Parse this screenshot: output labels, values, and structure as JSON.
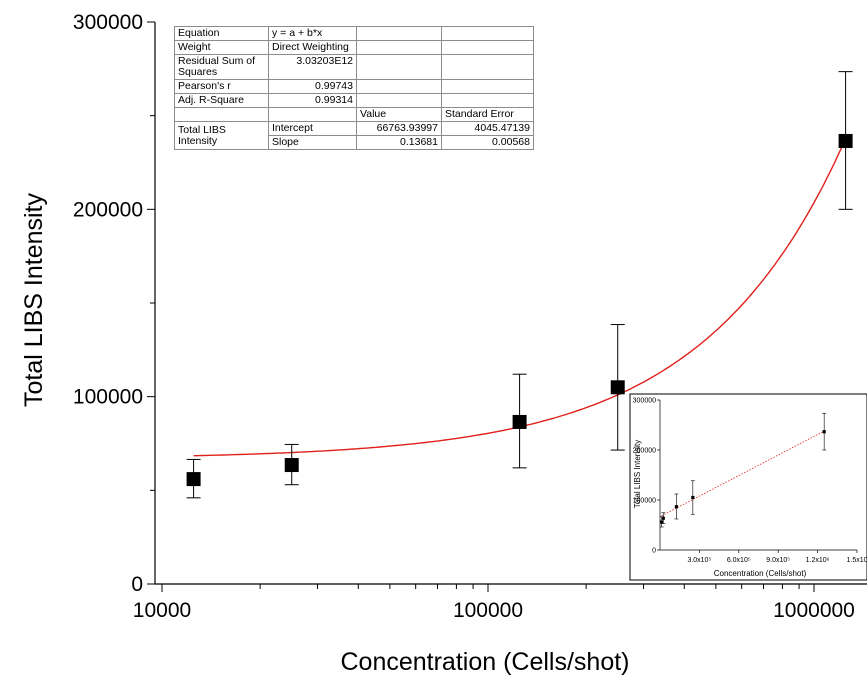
{
  "chart_data": [
    {
      "type": "scatter",
      "xscale": "log",
      "xlabel": "Concentration (Cells/shot)",
      "ylabel": "Total LIBS Intensity",
      "xlim": [
        10000,
        1300000
      ],
      "ylim": [
        0,
        300000
      ],
      "x_ticks": [
        "10000",
        "100000",
        "1000000"
      ],
      "y_ticks": [
        "0",
        "100000",
        "200000",
        "300000"
      ],
      "x_tick_values": [
        10000,
        100000,
        1000000
      ],
      "y_tick_values": [
        0,
        100000,
        200000,
        300000
      ],
      "grid": false,
      "series": [
        {
          "x": [
            12500,
            25000,
            125000,
            250000,
            1250000
          ],
          "y": [
            56000,
            63500,
            86500,
            105000,
            236500
          ],
          "yerr_low": [
            46000,
            53000,
            62000,
            71500,
            200000
          ],
          "yerr_high": [
            66500,
            74500,
            112000,
            138500,
            273500
          ],
          "marker": "square",
          "color": "#000000"
        }
      ],
      "fit": {
        "type": "line",
        "intercept": 66763.93997,
        "slope": 0.13681,
        "color": "#e0201b"
      },
      "fit_table": {
        "equation_label": "Equation",
        "equation_value": "y = a + b*x",
        "weight_label": "Weight",
        "weight_value": "Direct Weighting",
        "rss_label": "Residual Sum of Squares",
        "rss_value": "3.03203E12",
        "pearson_label": "Pearson's r",
        "pearson_value": "0.99743",
        "adjr2_label": "Adj. R-Square",
        "adjr2_value": "0.99314",
        "value_header": "Value",
        "stderr_header": "Standard Error",
        "row_label": "Total LIBS Intensity",
        "intercept_label": "Intercept",
        "intercept_value": "66763.93997",
        "intercept_err": "4045.47139",
        "slope_label": "Slope",
        "slope_value": "0.13681",
        "slope_err": "0.00568"
      }
    },
    {
      "type": "scatter",
      "xscale": "linear",
      "xlabel": "Concentration (Cells/shot)",
      "ylabel": "Total LIBS Intensity",
      "xlim": [
        0,
        1500000
      ],
      "ylim": [
        0,
        300000
      ],
      "x_ticks": [
        "3.0x10⁵",
        "6.0x10⁵",
        "9.0x10⁵",
        "1.2x10⁶",
        "1.5x10"
      ],
      "y_ticks": [
        "0",
        "100000",
        "200000",
        "300000"
      ],
      "x_tick_values": [
        300000,
        600000,
        900000,
        1200000,
        1500000
      ],
      "y_tick_values": [
        0,
        100000,
        200000,
        300000
      ],
      "series": [
        {
          "x": [
            12500,
            25000,
            125000,
            250000,
            1250000
          ],
          "y": [
            56000,
            63500,
            86500,
            105000,
            236500
          ],
          "yerr_low": [
            46000,
            53000,
            62000,
            71500,
            200000
          ],
          "yerr_high": [
            66500,
            74500,
            112000,
            138500,
            273500
          ],
          "marker": "square",
          "color": "#000000"
        }
      ],
      "fit": {
        "type": "line",
        "intercept": 66763.93997,
        "slope": 0.13681,
        "color": "#e0201b",
        "style": "dotted"
      }
    }
  ]
}
